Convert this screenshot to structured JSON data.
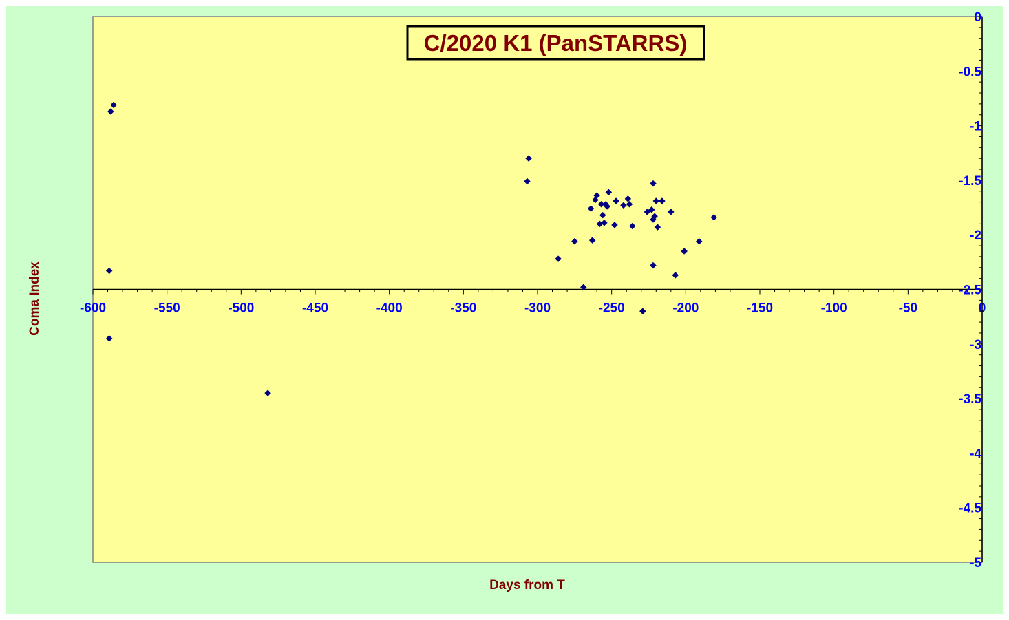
{
  "chart_data": {
    "type": "scatter",
    "title": "C/2020 K1 (PanSTARRS)",
    "xlabel": "Days from T",
    "ylabel": "Coma Index",
    "xlim": [
      -600,
      0
    ],
    "ylim": [
      -5,
      0
    ],
    "x_ticks": [
      -600,
      -550,
      -500,
      -450,
      -400,
      -350,
      -300,
      -250,
      -200,
      -150,
      -100,
      -50,
      0
    ],
    "y_ticks": [
      0,
      -0.5,
      -1,
      -1.5,
      -2,
      -2.5,
      -3,
      -3.5,
      -4,
      -4.5,
      -5
    ],
    "x_axis_crosses_at_y": -2.5,
    "y_axis_position": "right",
    "grid": false,
    "legend": "none",
    "marker": "diamond",
    "colors": {
      "outer_background": "#ccffcc",
      "plot_background": "#ffff99",
      "marker": "#000080",
      "tick_labels": "#0000ff",
      "titles": "#800000"
    },
    "series": [
      {
        "points": [
          [
            -586,
            -0.81
          ],
          [
            -588,
            -0.87
          ],
          [
            -589,
            -2.33
          ],
          [
            -589,
            -2.95
          ],
          [
            -482,
            -3.45
          ],
          [
            -306,
            -1.3
          ],
          [
            -307,
            -1.51
          ],
          [
            -286,
            -2.22
          ],
          [
            -275,
            -2.06
          ],
          [
            -269,
            -2.48
          ],
          [
            -264,
            -1.76
          ],
          [
            -263,
            -2.05
          ],
          [
            -261,
            -1.68
          ],
          [
            -260,
            -1.64
          ],
          [
            -258,
            -1.9
          ],
          [
            -257,
            -1.72
          ],
          [
            -256,
            -1.82
          ],
          [
            -255,
            -1.89
          ],
          [
            -254,
            -1.72
          ],
          [
            -253,
            -1.74
          ],
          [
            -252,
            -1.61
          ],
          [
            -248,
            -1.91
          ],
          [
            -247,
            -1.69
          ],
          [
            -242,
            -1.73
          ],
          [
            -239,
            -1.67
          ],
          [
            -238,
            -1.72
          ],
          [
            -236,
            -1.92
          ],
          [
            -229,
            -2.7
          ],
          [
            -226,
            -1.79
          ],
          [
            -223,
            -1.77
          ],
          [
            -222,
            -1.53
          ],
          [
            -222,
            -1.86
          ],
          [
            -222,
            -2.28
          ],
          [
            -221,
            -1.83
          ],
          [
            -220,
            -1.69
          ],
          [
            -219,
            -1.93
          ],
          [
            -216,
            -1.69
          ],
          [
            -210,
            -1.79
          ],
          [
            -207,
            -2.37
          ],
          [
            -201,
            -2.15
          ],
          [
            -191,
            -2.06
          ],
          [
            -181,
            -1.84
          ]
        ]
      }
    ]
  }
}
